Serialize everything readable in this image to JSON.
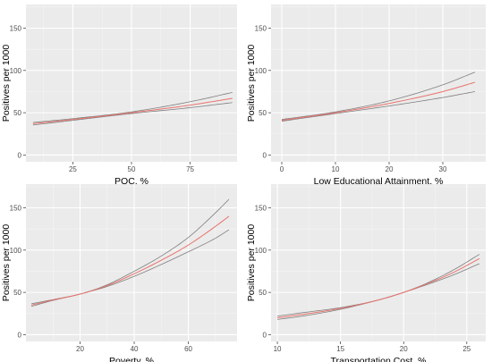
{
  "colors": {
    "panel_background": "#ebebeb",
    "grid_major": "#ffffff",
    "fit_line": "#e8736c",
    "ci_line": "#7f7f7f"
  },
  "chart_data": [
    {
      "type": "line",
      "xlabel": "POC, %",
      "ylabel": "Positives per 1000",
      "xlim": [
        5,
        95
      ],
      "ylim": [
        -8,
        178
      ],
      "x_ticks": [
        25,
        50,
        75
      ],
      "y_ticks": [
        0,
        50,
        100,
        150
      ],
      "grid": true,
      "series": [
        {
          "role": "fit",
          "x": [
            8,
            25,
            50,
            75,
            93
          ],
          "values": [
            37,
            42,
            50,
            59,
            67
          ]
        },
        {
          "role": "upper",
          "x": [
            8,
            25,
            50,
            75,
            93
          ],
          "values": [
            38.5,
            43,
            51,
            63,
            74
          ]
        },
        {
          "role": "lower",
          "x": [
            8,
            25,
            50,
            75,
            93
          ],
          "values": [
            35.5,
            41,
            49,
            56,
            62
          ]
        }
      ]
    },
    {
      "type": "line",
      "xlabel": "Low Educational Attainment, %",
      "ylabel": "Positives per 1000",
      "xlim": [
        -2,
        38
      ],
      "ylim": [
        -8,
        178
      ],
      "x_ticks": [
        0,
        10,
        20,
        30
      ],
      "y_ticks": [
        0,
        50,
        100,
        150
      ],
      "grid": true,
      "series": [
        {
          "role": "fit",
          "x": [
            0,
            10,
            20,
            30,
            36
          ],
          "values": [
            41,
            50,
            61,
            75,
            86
          ]
        },
        {
          "role": "upper",
          "x": [
            0,
            10,
            20,
            30,
            36
          ],
          "values": [
            42,
            51,
            64,
            83,
            98
          ]
        },
        {
          "role": "lower",
          "x": [
            0,
            10,
            20,
            30,
            36
          ],
          "values": [
            40,
            49,
            58,
            68,
            75
          ]
        }
      ]
    },
    {
      "type": "line",
      "xlabel": "Poverty, %",
      "ylabel": "Positives per 1000",
      "xlim": [
        0,
        78
      ],
      "ylim": [
        -8,
        178
      ],
      "x_ticks": [
        20,
        40,
        60
      ],
      "y_ticks": [
        0,
        50,
        100,
        150
      ],
      "grid": true,
      "series": [
        {
          "role": "fit",
          "x": [
            2,
            10,
            20,
            30,
            40,
            50,
            60,
            70,
            75
          ],
          "values": [
            35,
            41,
            48,
            58,
            72,
            88,
            106,
            128,
            140
          ]
        },
        {
          "role": "upper",
          "x": [
            2,
            10,
            20,
            30,
            40,
            50,
            60,
            70,
            75
          ],
          "values": [
            36.5,
            41.5,
            48,
            59,
            75,
            93,
            115,
            144,
            160
          ]
        },
        {
          "role": "lower",
          "x": [
            2,
            10,
            20,
            30,
            40,
            50,
            60,
            70,
            75
          ],
          "values": [
            33.5,
            40.5,
            48,
            57,
            69,
            83,
            98,
            114,
            124
          ]
        }
      ]
    },
    {
      "type": "line",
      "xlabel": "Transportation Cost, %",
      "ylabel": "Positives per 1000",
      "xlim": [
        9.5,
        26.5
      ],
      "ylim": [
        -8,
        178
      ],
      "x_ticks": [
        10,
        15,
        20,
        25
      ],
      "y_ticks": [
        0,
        50,
        100,
        150
      ],
      "grid": true,
      "series": [
        {
          "role": "fit",
          "x": [
            10,
            12,
            15,
            18,
            20,
            22,
            24,
            26
          ],
          "values": [
            20,
            24,
            31,
            41,
            50,
            61,
            74,
            90
          ]
        },
        {
          "role": "upper",
          "x": [
            10,
            12,
            15,
            18,
            20,
            22,
            24,
            26
          ],
          "values": [
            22,
            26,
            32,
            41,
            50,
            62,
            77,
            95
          ]
        },
        {
          "role": "lower",
          "x": [
            10,
            12,
            15,
            18,
            20,
            22,
            24,
            26
          ],
          "values": [
            18,
            22,
            30,
            41,
            50,
            60,
            71,
            84
          ]
        }
      ]
    }
  ]
}
